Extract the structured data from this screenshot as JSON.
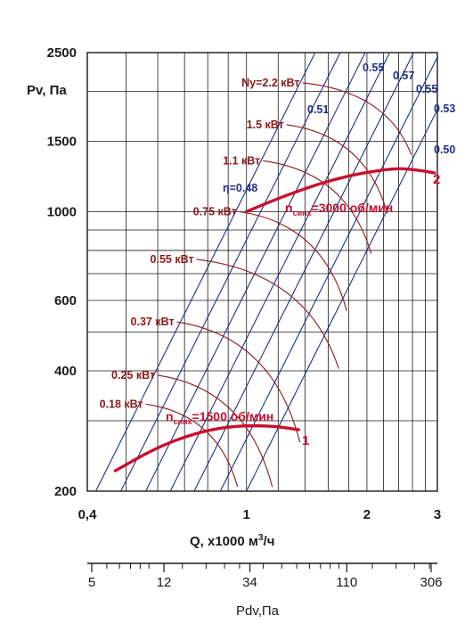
{
  "chart_data": {
    "type": "line",
    "title": "",
    "xlabel_prefix": "Q, x1000 м",
    "xlabel_sup": "3",
    "xlabel_suffix": "/ч",
    "ylabel": "Pv, Па",
    "x_scale": "log",
    "y_scale": "log",
    "xlim": [
      0.4,
      3
    ],
    "ylim": [
      200,
      2500
    ],
    "x_ticks": [
      {
        "value": 0.4,
        "label": "0,4"
      },
      {
        "value": 1,
        "label": "1"
      },
      {
        "value": 2,
        "label": "2"
      },
      {
        "value": 3,
        "label": "3"
      }
    ],
    "x_grid": [
      0.5,
      0.6,
      0.7,
      0.8,
      0.9,
      1,
      1.2,
      1.4,
      1.6,
      1.8,
      2,
      2.2,
      2.4,
      2.6,
      2.8,
      3
    ],
    "y_ticks": [
      {
        "value": 200,
        "label": "200"
      },
      {
        "value": 400,
        "label": "400"
      },
      {
        "value": 600,
        "label": "600"
      },
      {
        "value": 1000,
        "label": "1000"
      },
      {
        "value": 1500,
        "label": "1500"
      },
      {
        "value": 2500,
        "label": "2500"
      }
    ],
    "y_grid": [
      200,
      300,
      400,
      500,
      600,
      700,
      800,
      900,
      1000,
      1500,
      2000,
      2500
    ],
    "grid": true,
    "series": [
      {
        "name": "1",
        "speed_prefix": "n",
        "speed_sub": "синх",
        "speed_suffix": "=1500 об/мин",
        "color": "#c8102e",
        "points": [
          [
            0.47,
            225
          ],
          [
            0.6,
            258
          ],
          [
            0.75,
            280
          ],
          [
            0.9,
            290
          ],
          [
            1.05,
            292
          ],
          [
            1.2,
            290
          ],
          [
            1.35,
            285
          ]
        ]
      },
      {
        "name": "2",
        "speed_prefix": "n",
        "speed_sub": "синх",
        "speed_suffix": "=3000 об/мин",
        "color": "#c8102e",
        "points": [
          [
            1.0,
            1000
          ],
          [
            1.2,
            1080
          ],
          [
            1.5,
            1170
          ],
          [
            1.8,
            1230
          ],
          [
            2.1,
            1265
          ],
          [
            2.4,
            1285
          ],
          [
            2.7,
            1270
          ],
          [
            2.95,
            1250
          ]
        ]
      }
    ],
    "efficiency_lines": {
      "color": "#1f2f8a",
      "items": [
        {
          "label": "η=0.48",
          "q_at_200": 0.42
        },
        {
          "label": "0.51",
          "q_at_200": 0.485
        },
        {
          "label": "0.55",
          "q_at_200": 0.56
        },
        {
          "label": "0.57",
          "q_at_200": 0.645
        },
        {
          "label": "0.55",
          "q_at_200": 0.74
        },
        {
          "label": "0.53",
          "q_at_200": 0.86
        },
        {
          "label": "0.50",
          "q_at_200": 1.0
        }
      ]
    },
    "power_curves": {
      "color": "#8b1a1a",
      "items": [
        {
          "label": "0.18 кВт",
          "anchor": [
            0.56,
            330
          ],
          "end": [
            0.95,
            205
          ]
        },
        {
          "label": "0.25 кВт",
          "anchor": [
            0.6,
            390
          ],
          "end": [
            1.16,
            205
          ]
        },
        {
          "label": "0.37 кВт",
          "anchor": [
            0.67,
            530
          ],
          "end": [
            1.36,
            265
          ]
        },
        {
          "label": "0.55 кВт",
          "anchor": [
            0.75,
            760
          ],
          "end": [
            1.7,
            405
          ]
        },
        {
          "label": "0.75 кВт",
          "anchor": [
            0.96,
            1000
          ],
          "end": [
            1.78,
            565
          ]
        },
        {
          "label": "1.1 кВт",
          "anchor": [
            1.1,
            1340
          ],
          "end": [
            2.05,
            785
          ]
        },
        {
          "label": "1.5 кВт",
          "anchor": [
            1.26,
            1650
          ],
          "end": [
            2.25,
            990
          ]
        },
        {
          "label": "Ny=2.2 кВт",
          "anchor": [
            1.38,
            2100
          ],
          "end": [
            2.58,
            1390
          ]
        }
      ]
    },
    "pdv_scale": {
      "label": "Pdv,Па",
      "ticks": [
        {
          "value": 5,
          "label": "5"
        },
        {
          "value": 12,
          "label": "12"
        },
        {
          "value": 34,
          "label": "34"
        },
        {
          "value": 110,
          "label": "110"
        },
        {
          "value": 306,
          "label": "306"
        }
      ],
      "minor": [
        6,
        7,
        8,
        9,
        10,
        15,
        20,
        25,
        30,
        40,
        50,
        60,
        70,
        80,
        90,
        100,
        150,
        200,
        250,
        300
      ]
    }
  }
}
